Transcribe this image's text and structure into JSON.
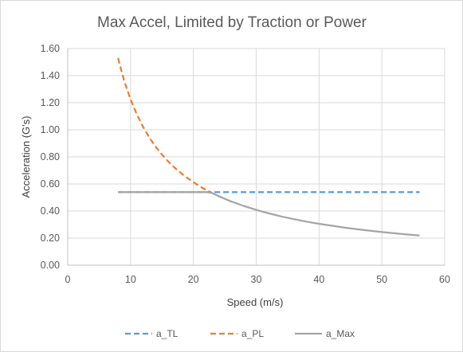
{
  "chart_data": {
    "type": "line",
    "title": "Max Accel, Limited by Traction or Power",
    "xlabel": "Speed (m/s)",
    "ylabel": "Acceleration (G's)",
    "xlim": [
      0,
      60
    ],
    "ylim": [
      0,
      1.6
    ],
    "x_ticks": [
      "0",
      "10",
      "20",
      "30",
      "40",
      "50",
      "60"
    ],
    "y_ticks": [
      "0.00",
      "0.20",
      "0.40",
      "0.60",
      "0.80",
      "1.00",
      "1.20",
      "1.40",
      "1.60"
    ],
    "grid": true,
    "legend_position": "bottom",
    "series": [
      {
        "name": "a_TL",
        "color": "#5b9bd5",
        "dash": "dashed",
        "x": [
          8,
          56
        ],
        "y": [
          0.54,
          0.54
        ]
      },
      {
        "name": "a_PL",
        "color": "#ed7d31",
        "dash": "dashed",
        "x": [
          8,
          9,
          10,
          11,
          12,
          13,
          14,
          15,
          16,
          17,
          18,
          19,
          20,
          21,
          22,
          23
        ],
        "y": [
          1.53,
          1.36,
          1.225,
          1.114,
          1.021,
          0.942,
          0.875,
          0.817,
          0.766,
          0.721,
          0.681,
          0.645,
          0.613,
          0.583,
          0.557,
          0.533
        ]
      },
      {
        "name": "a_Max",
        "color": "#a5a5a5",
        "dash": "solid",
        "x": [
          8,
          22,
          23,
          24,
          26,
          28,
          30,
          32,
          34,
          36,
          38,
          40,
          42,
          44,
          46,
          48,
          50,
          52,
          54,
          56
        ],
        "y": [
          0.54,
          0.54,
          0.533,
          0.51,
          0.471,
          0.438,
          0.408,
          0.383,
          0.36,
          0.34,
          0.322,
          0.306,
          0.292,
          0.278,
          0.266,
          0.255,
          0.245,
          0.236,
          0.227,
          0.219
        ]
      }
    ]
  }
}
